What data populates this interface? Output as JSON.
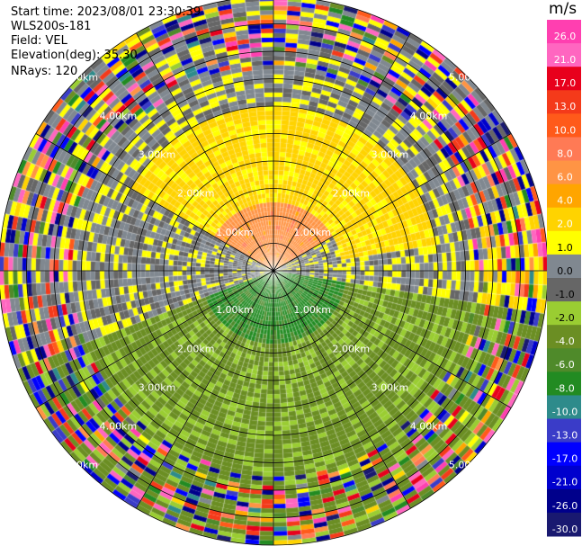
{
  "info": {
    "start_time": "Start time: 2023/08/01 23:30:39",
    "instrument": "WLS200s-181",
    "field": "Field: VEL",
    "elevation": "Elevation(deg): 35.30",
    "nrays": "NRays: 120"
  },
  "chart_data": {
    "type": "heatmap",
    "projection": "polar-ppi",
    "title": "",
    "field": "VEL",
    "units": "m/s",
    "range_rings_km": [
      0.5,
      1.0,
      1.5,
      2.0,
      2.5,
      3.0,
      3.5,
      4.0,
      4.5,
      5.0
    ],
    "ring_labels": [
      {
        "text": "1.00km",
        "range_km": 1.0
      },
      {
        "text": "2.00km",
        "range_km": 2.0
      },
      {
        "text": "3.00km",
        "range_km": 3.0
      },
      {
        "text": "4.00km",
        "range_km": 4.0
      },
      {
        "text": "5.00km",
        "range_km": 5.0
      }
    ],
    "max_range_km": 5.0,
    "n_rays": 120,
    "colorbar": {
      "ticks": [
        "26.0",
        "21.0",
        "17.0",
        "13.0",
        "10.0",
        "8.0",
        "6.0",
        "4.0",
        "2.0",
        "1.0",
        "0.0",
        "-1.0",
        "-2.0",
        "-4.0",
        "-6.0",
        "-8.0",
        "-10.0",
        "-13.0",
        "-17.0",
        "-21.0",
        "-26.0",
        "-30.0"
      ],
      "bins": [
        {
          "lo": 26,
          "hi": 30,
          "color": "#ff3fb0"
        },
        {
          "lo": 21,
          "hi": 26,
          "color": "#ff66c0"
        },
        {
          "lo": 17,
          "hi": 21,
          "color": "#e8001c"
        },
        {
          "lo": 13,
          "hi": 17,
          "color": "#f43a1a"
        },
        {
          "lo": 10,
          "hi": 13,
          "color": "#ff5a1a"
        },
        {
          "lo": 8,
          "hi": 10,
          "color": "#ff7a55"
        },
        {
          "lo": 6,
          "hi": 8,
          "color": "#ff9444"
        },
        {
          "lo": 4,
          "hi": 6,
          "color": "#ffa500"
        },
        {
          "lo": 2,
          "hi": 4,
          "color": "#ffd300"
        },
        {
          "lo": 1,
          "hi": 2,
          "color": "#ffff00"
        },
        {
          "lo": 0,
          "hi": 1,
          "color": "#808890"
        },
        {
          "lo": -1,
          "hi": 0,
          "color": "#666666"
        },
        {
          "lo": -2,
          "hi": -1,
          "color": "#9acd32"
        },
        {
          "lo": -4,
          "hi": -2,
          "color": "#6b8e23"
        },
        {
          "lo": -6,
          "hi": -4,
          "color": "#4f8a2a"
        },
        {
          "lo": -8,
          "hi": -6,
          "color": "#228b22"
        },
        {
          "lo": -10,
          "hi": -8,
          "color": "#2e8b8b"
        },
        {
          "lo": -13,
          "hi": -10,
          "color": "#3a3cc8"
        },
        {
          "lo": -17,
          "hi": -13,
          "color": "#0000ff"
        },
        {
          "lo": -21,
          "hi": -17,
          "color": "#0000cd"
        },
        {
          "lo": -26,
          "hi": -21,
          "color": "#00008b"
        },
        {
          "lo": -30,
          "hi": -26,
          "color": "#191970"
        }
      ]
    },
    "regions": [
      {
        "description": "receding flow north-northeast",
        "az_from": 300,
        "az_to": 60,
        "range_from_km": 0.0,
        "range_to_km": 1.2,
        "value": 7
      },
      {
        "description": "receding flow north",
        "az_from": 280,
        "az_to": 80,
        "range_from_km": 1.2,
        "range_to_km": 3.0,
        "value": 2.5
      },
      {
        "description": "receding flow east band",
        "az_from": 75,
        "az_to": 115,
        "range_from_km": 3.8,
        "range_to_km": 5.0,
        "value": 2.0
      },
      {
        "description": "near-zero west",
        "az_from": 240,
        "az_to": 300,
        "range_from_km": 0.3,
        "range_to_km": 3.0,
        "value": 0.3
      },
      {
        "description": "approaching flow south",
        "az_from": 100,
        "az_to": 250,
        "range_from_km": 0.0,
        "range_to_km": 1.3,
        "value": -6.5
      },
      {
        "description": "approaching flow south outer",
        "az_from": 100,
        "az_to": 250,
        "range_from_km": 1.3,
        "range_to_km": 5.0,
        "value": -2.5
      }
    ]
  },
  "colors": {
    "background": "#ffffff",
    "grid": "#000000",
    "ring_label": "#ffffff"
  }
}
